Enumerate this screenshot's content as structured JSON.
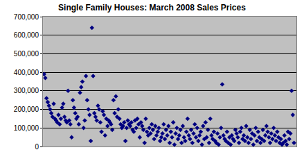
{
  "chart_data": {
    "type": "scatter",
    "title": "Single Family Houses: March 2008 Sales Prices",
    "x": [
      1,
      2,
      3,
      4,
      5,
      6,
      7,
      8,
      9,
      10,
      11,
      12,
      13,
      14,
      15,
      16,
      17,
      18,
      19,
      20,
      21,
      22,
      23,
      24,
      25,
      26,
      27,
      28,
      29,
      30,
      31,
      32,
      33,
      34,
      35,
      36,
      37,
      38,
      39,
      40,
      41,
      42,
      43,
      44,
      45,
      46,
      47,
      48,
      49,
      50,
      51,
      52,
      53,
      54,
      55,
      56,
      57,
      58,
      59,
      60,
      61,
      62,
      63,
      64,
      65,
      66,
      67,
      68,
      69,
      70,
      71,
      72,
      73,
      74,
      75,
      76,
      77,
      78,
      79,
      80,
      81,
      82,
      83,
      84,
      85,
      86,
      87,
      88,
      89,
      90,
      91,
      92,
      93,
      94,
      95,
      96,
      97,
      98,
      99,
      100,
      101,
      102,
      103,
      104,
      105,
      106,
      107,
      108,
      109,
      110,
      111,
      112,
      113,
      114,
      115,
      116,
      117,
      118,
      119,
      120,
      121,
      122,
      123,
      124,
      125,
      126,
      127,
      128,
      129,
      130,
      131,
      132,
      133,
      134,
      135,
      136,
      137,
      138,
      139,
      140,
      141,
      142,
      143,
      144,
      145,
      146,
      147,
      148,
      149,
      150,
      151,
      152,
      153,
      154,
      155,
      156,
      157,
      158,
      159,
      160,
      161,
      162,
      163,
      164,
      165,
      166,
      167,
      168,
      169,
      170,
      171,
      172,
      173,
      174,
      175,
      176,
      177,
      178,
      179,
      180,
      181,
      182,
      183,
      184,
      185,
      186,
      187,
      188,
      189,
      190,
      191,
      192,
      193,
      194,
      195,
      196,
      197,
      198,
      199,
      200,
      201,
      202,
      203,
      204,
      205,
      206,
      207,
      208,
      209,
      210
    ],
    "values": [
      390000,
      370000,
      260000,
      240000,
      220000,
      200000,
      180000,
      160000,
      230000,
      150000,
      140000,
      130000,
      170000,
      120000,
      150000,
      210000,
      230000,
      160000,
      140000,
      130000,
      300000,
      140000,
      120000,
      50000,
      250000,
      210000,
      180000,
      150000,
      160000,
      120000,
      290000,
      320000,
      350000,
      100000,
      140000,
      380000,
      250000,
      200000,
      170000,
      30000,
      640000,
      380000,
      180000,
      160000,
      140000,
      220000,
      200000,
      130000,
      80000,
      190000,
      170000,
      60000,
      150000,
      110000,
      140000,
      130000,
      120000,
      90000,
      250000,
      180000,
      270000,
      160000,
      200000,
      150000,
      120000,
      100000,
      110000,
      130000,
      30000,
      100000,
      140000,
      120000,
      110000,
      130000,
      90000,
      80000,
      140000,
      100000,
      150000,
      120000,
      50000,
      130000,
      110000,
      90000,
      20000,
      150000,
      80000,
      60000,
      100000,
      70000,
      120000,
      90000,
      40000,
      110000,
      60000,
      80000,
      100000,
      30000,
      50000,
      70000,
      120000,
      40000,
      90000,
      60000,
      110000,
      20000,
      80000,
      50000,
      130000,
      10000,
      70000,
      100000,
      40000,
      60000,
      90000,
      20000,
      110000,
      50000,
      30000,
      80000,
      150000,
      60000,
      40000,
      90000,
      20000,
      70000,
      120000,
      50000,
      100000,
      30000,
      60000,
      80000,
      10000,
      110000,
      40000,
      130000,
      50000,
      90000,
      20000,
      150000,
      60000,
      40000,
      80000,
      30000,
      20000,
      70000,
      10000,
      50000,
      100000,
      335000,
      60000,
      40000,
      30000,
      80000,
      20000,
      50000,
      10000,
      60000,
      40000,
      30000,
      90000,
      70000,
      50000,
      20000,
      80000,
      100000,
      40000,
      60000,
      30000,
      110000,
      50000,
      20000,
      90000,
      40000,
      70000,
      10000,
      60000,
      100000,
      30000,
      80000,
      50000,
      20000,
      40000,
      90000,
      30000,
      60000,
      110000,
      80000,
      50000,
      20000,
      70000,
      40000,
      100000,
      60000,
      30000,
      80000,
      50000,
      20000,
      40000,
      10000,
      20000,
      60000,
      30000,
      10000,
      80000,
      40000,
      70000,
      300000,
      170000,
      20000
    ],
    "color": "#000080",
    "marker": "diamond",
    "xlim": [
      0,
      212
    ],
    "ylim": [
      0,
      700000
    ],
    "yticks": [
      0,
      {
        "value": 100000,
        "label": "100,000"
      },
      {
        "value": 200000,
        "label": "200,000"
      },
      {
        "value": 300000,
        "label": "300,000"
      },
      {
        "value": 400000,
        "label": "400,000"
      },
      {
        "value": 500000,
        "label": "500,000"
      },
      {
        "value": 600000,
        "label": "600,000"
      },
      {
        "value": 700000,
        "label": "700,000"
      }
    ],
    "grid": true,
    "tick_labels": "y"
  }
}
